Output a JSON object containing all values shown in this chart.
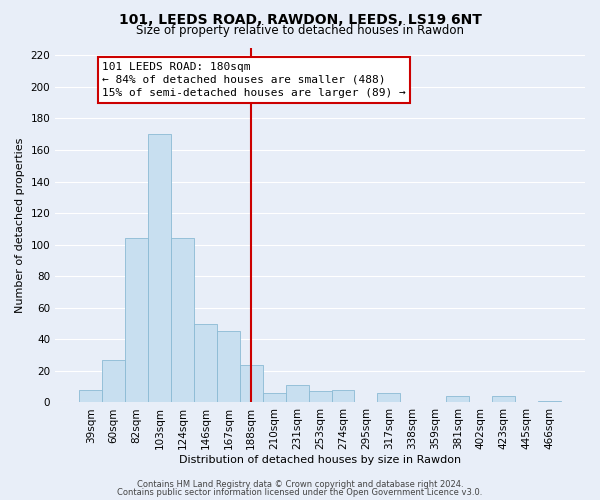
{
  "title": "101, LEEDS ROAD, RAWDON, LEEDS, LS19 6NT",
  "subtitle": "Size of property relative to detached houses in Rawdon",
  "xlabel": "Distribution of detached houses by size in Rawdon",
  "ylabel": "Number of detached properties",
  "bar_color": "#c8dff0",
  "bar_edge_color": "#8bbad4",
  "categories": [
    "39sqm",
    "60sqm",
    "82sqm",
    "103sqm",
    "124sqm",
    "146sqm",
    "167sqm",
    "188sqm",
    "210sqm",
    "231sqm",
    "253sqm",
    "274sqm",
    "295sqm",
    "317sqm",
    "338sqm",
    "359sqm",
    "381sqm",
    "402sqm",
    "423sqm",
    "445sqm",
    "466sqm"
  ],
  "values": [
    8,
    27,
    104,
    170,
    104,
    50,
    45,
    24,
    6,
    11,
    7,
    8,
    0,
    6,
    0,
    0,
    4,
    0,
    4,
    0,
    1
  ],
  "vline_x": 7,
  "vline_color": "#cc0000",
  "annotation_text": "101 LEEDS ROAD: 180sqm\n← 84% of detached houses are smaller (488)\n15% of semi-detached houses are larger (89) →",
  "annotation_box_facecolor": "#ffffff",
  "annotation_box_edgecolor": "#cc0000",
  "footer1": "Contains HM Land Registry data © Crown copyright and database right 2024.",
  "footer2": "Contains public sector information licensed under the Open Government Licence v3.0.",
  "background_color": "#e8eef8",
  "grid_color": "#ffffff",
  "ylim": [
    0,
    225
  ],
  "yticks": [
    0,
    20,
    40,
    60,
    80,
    100,
    120,
    140,
    160,
    180,
    200,
    220
  ],
  "title_fontsize": 10,
  "subtitle_fontsize": 8.5,
  "ylabel_fontsize": 8,
  "xlabel_fontsize": 8,
  "tick_fontsize": 7.5,
  "footer_fontsize": 6,
  "annot_fontsize": 8
}
